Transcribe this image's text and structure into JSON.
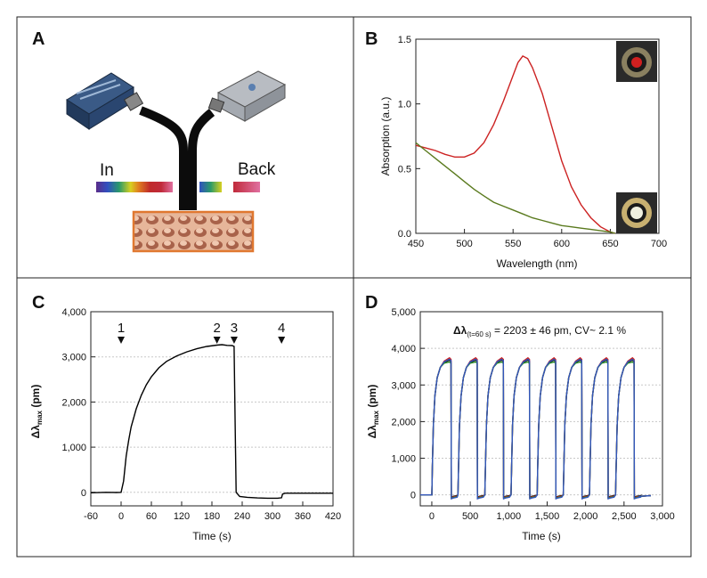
{
  "panels": {
    "a": {
      "letter": "A",
      "in_label": "In",
      "back_label": "Back"
    },
    "b": {
      "letter": "B"
    },
    "c": {
      "letter": "C",
      "markers": [
        "1",
        "2",
        "3",
        "4"
      ]
    },
    "d": {
      "letter": "D",
      "annotation_prefix": "Δλ",
      "annotation_sub": "(t=60 s)",
      "annotation_rest": " = 2203 ± 46 pm, CV~ 2.1 %"
    }
  },
  "chart_data": [
    {
      "panel": "B",
      "type": "line",
      "xlabel": "Wavelength (nm)",
      "ylabel": "Absorption (a.u.)",
      "xlim": [
        450,
        700
      ],
      "ylim": [
        0.0,
        1.5
      ],
      "x_ticks": [
        "450",
        "500",
        "550",
        "600",
        "650",
        "700"
      ],
      "y_ticks": [
        "0.0",
        "0.5",
        "1.0",
        "1.5"
      ],
      "grid": false,
      "series": [
        {
          "color": "#cc2222",
          "x": [
            450,
            460,
            470,
            480,
            490,
            500,
            510,
            520,
            530,
            540,
            550,
            555,
            560,
            565,
            570,
            580,
            590,
            600,
            610,
            620,
            630,
            640,
            650,
            655
          ],
          "y": [
            0.68,
            0.66,
            0.64,
            0.61,
            0.59,
            0.59,
            0.62,
            0.7,
            0.84,
            1.02,
            1.22,
            1.32,
            1.37,
            1.35,
            1.28,
            1.08,
            0.82,
            0.56,
            0.36,
            0.22,
            0.12,
            0.05,
            0.01,
            0.0
          ]
        },
        {
          "color": "#5a7a1e",
          "x": [
            450,
            460,
            470,
            480,
            490,
            500,
            510,
            520,
            530,
            540,
            550,
            560,
            570,
            580,
            590,
            600,
            610,
            620,
            630,
            640,
            650,
            655
          ],
          "y": [
            0.7,
            0.64,
            0.58,
            0.52,
            0.46,
            0.4,
            0.34,
            0.29,
            0.24,
            0.21,
            0.18,
            0.15,
            0.12,
            0.1,
            0.08,
            0.06,
            0.05,
            0.04,
            0.03,
            0.02,
            0.01,
            0.0
          ]
        }
      ]
    },
    {
      "panel": "C",
      "type": "line",
      "xlabel": "Time (s)",
      "ylabel": "Δλmax (pm)",
      "xlim": [
        -60,
        420
      ],
      "ylim": [
        -300,
        4000
      ],
      "x_ticks": [
        "-60",
        "0",
        "60",
        "120",
        "180",
        "240",
        "300",
        "360",
        "420"
      ],
      "y_ticks": [
        "0",
        "1,000",
        "2,000",
        "3,000",
        "4,000"
      ],
      "grid": "horizontal",
      "markers_x": [
        0,
        190,
        224,
        318
      ],
      "series": [
        {
          "color": "#000000",
          "x": [
            -60,
            -30,
            -10,
            0,
            5,
            10,
            15,
            20,
            30,
            40,
            50,
            60,
            75,
            90,
            110,
            130,
            150,
            170,
            190,
            200,
            210,
            220,
            224,
            226,
            228,
            235,
            250,
            270,
            290,
            310,
            318,
            320,
            325,
            340,
            360,
            380,
            400,
            420
          ],
          "y": [
            -10,
            0,
            -5,
            0,
            250,
            800,
            1150,
            1450,
            1850,
            2150,
            2380,
            2560,
            2760,
            2900,
            3020,
            3110,
            3180,
            3230,
            3260,
            3270,
            3255,
            3250,
            3230,
            1500,
            0,
            -90,
            -110,
            -125,
            -130,
            -130,
            -120,
            -40,
            -20,
            -20,
            -20,
            -20,
            -20,
            -20
          ]
        }
      ]
    },
    {
      "panel": "D",
      "type": "line",
      "xlabel": "Time (s)",
      "ylabel": "Δλmax (pm)",
      "xlim": [
        -150,
        3000
      ],
      "ylim": [
        -300,
        5000
      ],
      "x_ticks": [
        "0",
        "500",
        "1,000",
        "1,500",
        "2,000",
        "2,500",
        "3,000"
      ],
      "y_ticks": [
        "0",
        "1,000",
        "2,000",
        "3,000",
        "4,000",
        "5,000"
      ],
      "grid": "horizontal",
      "cycle_starts": [
        0,
        340,
        690,
        1030,
        1370,
        1710,
        2050,
        2390
      ],
      "cycle_ends": [
        250,
        590,
        930,
        1270,
        1610,
        1950,
        2290,
        2630
      ],
      "plateau": 3680,
      "series": [
        {
          "color": "#111111"
        },
        {
          "color": "#cc2222"
        },
        {
          "color": "#2a8a2a"
        },
        {
          "color": "#3355bb"
        }
      ]
    }
  ]
}
